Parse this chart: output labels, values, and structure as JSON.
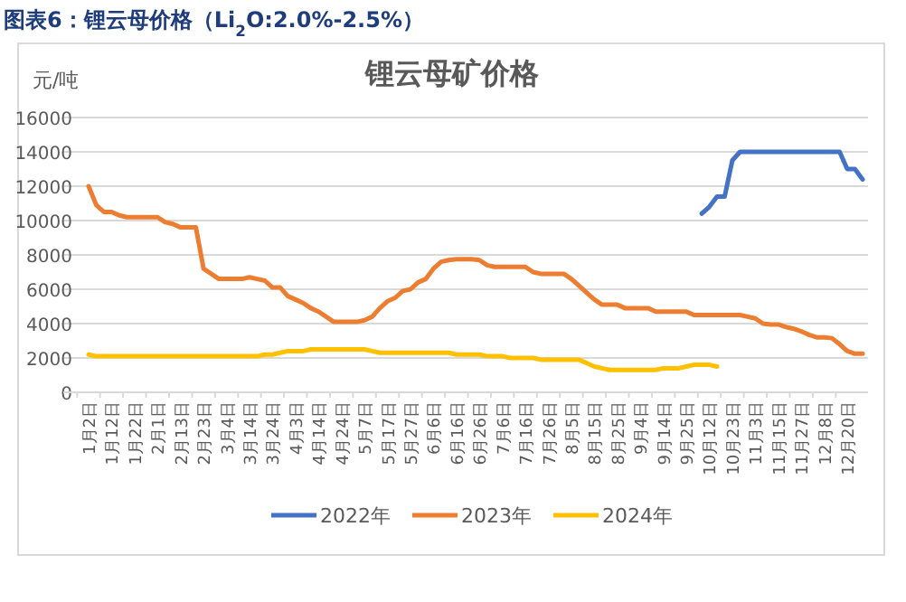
{
  "chart_data": {
    "type": "line",
    "title": "图表6：锂云母价格（Li$_{2}$O:2.0%-2.5%）",
    "subtitle": "锂云母矿价格",
    "ylabel": "元/吨",
    "categories": [
      "1月2日",
      null,
      null,
      "1月12日",
      null,
      null,
      "1月22日",
      null,
      null,
      "2月1日",
      null,
      null,
      "2月13日",
      null,
      null,
      "2月23日",
      null,
      null,
      "3月4日",
      null,
      null,
      "3月14日",
      null,
      null,
      "3月24日",
      null,
      null,
      "4月3日",
      null,
      null,
      "4月14日",
      null,
      null,
      "4月24日",
      null,
      null,
      "5月7日",
      null,
      null,
      "5月17日",
      null,
      null,
      "5月27日",
      null,
      null,
      "6月6日",
      null,
      null,
      "6月16日",
      null,
      null,
      "6月26日",
      null,
      null,
      "7月6日",
      null,
      null,
      "7月16日",
      null,
      null,
      "7月26日",
      null,
      null,
      "8月5日",
      null,
      null,
      "8月15日",
      null,
      null,
      "8月25日",
      null,
      null,
      "9月4日",
      null,
      null,
      "9月14日",
      null,
      null,
      "9月25日",
      null,
      null,
      "10月12日",
      null,
      null,
      "10月23日",
      null,
      null,
      "11月3日",
      null,
      null,
      "11月15日",
      null,
      null,
      "11月27日",
      null,
      null,
      "12月8日",
      null,
      null,
      "12月20日",
      null,
      null
    ],
    "series": [
      {
        "name": "2022年",
        "color": "#4472c4",
        "values": [
          null,
          null,
          null,
          null,
          null,
          null,
          null,
          null,
          null,
          null,
          null,
          null,
          null,
          null,
          null,
          null,
          null,
          null,
          null,
          null,
          null,
          null,
          null,
          null,
          null,
          null,
          null,
          null,
          null,
          null,
          null,
          null,
          null,
          null,
          null,
          null,
          null,
          null,
          null,
          null,
          null,
          null,
          null,
          null,
          null,
          null,
          null,
          null,
          null,
          null,
          null,
          null,
          null,
          null,
          null,
          null,
          null,
          null,
          null,
          null,
          null,
          null,
          null,
          null,
          null,
          null,
          null,
          null,
          null,
          null,
          null,
          null,
          null,
          null,
          null,
          null,
          null,
          null,
          null,
          null,
          10400,
          10800,
          11400,
          11400,
          13500,
          14000,
          14000,
          14000,
          14000,
          14000,
          14000,
          14000,
          14000,
          14000,
          14000,
          14000,
          14000,
          14000,
          14000,
          13000,
          13000,
          12400
        ]
      },
      {
        "name": "2023年",
        "color": "#ed7d31",
        "values": [
          12000,
          10900,
          10500,
          10500,
          10300,
          10200,
          10200,
          10200,
          10200,
          10200,
          9900,
          9800,
          9600,
          9600,
          9600,
          7200,
          6900,
          6600,
          6600,
          6600,
          6600,
          6700,
          6600,
          6500,
          6100,
          6100,
          5600,
          5400,
          5200,
          4900,
          4700,
          4400,
          4100,
          4100,
          4100,
          4100,
          4200,
          4400,
          4900,
          5300,
          5500,
          5900,
          6000,
          6400,
          6600,
          7200,
          7600,
          7700,
          7750,
          7750,
          7750,
          7700,
          7400,
          7300,
          7300,
          7300,
          7300,
          7300,
          7000,
          6900,
          6900,
          6900,
          6900,
          6600,
          6200,
          5800,
          5400,
          5100,
          5100,
          5100,
          4900,
          4900,
          4900,
          4900,
          4700,
          4700,
          4700,
          4700,
          4700,
          4500,
          4500,
          4500,
          4500,
          4500,
          4500,
          4500,
          4400,
          4300,
          4000,
          3950,
          3950,
          3800,
          3700,
          3550,
          3350,
          3200,
          3200,
          3150,
          2800,
          2400,
          2250,
          2250
        ]
      },
      {
        "name": "2024年",
        "color": "#ffc000",
        "values": [
          2200,
          2100,
          2100,
          2100,
          2100,
          2100,
          2100,
          2100,
          2100,
          2100,
          2100,
          2100,
          2100,
          2100,
          2100,
          2100,
          2100,
          2100,
          2100,
          2100,
          2100,
          2100,
          2100,
          2200,
          2200,
          2300,
          2400,
          2400,
          2400,
          2500,
          2500,
          2500,
          2500,
          2500,
          2500,
          2500,
          2500,
          2400,
          2300,
          2300,
          2300,
          2300,
          2300,
          2300,
          2300,
          2300,
          2300,
          2300,
          2200,
          2200,
          2200,
          2200,
          2100,
          2100,
          2100,
          2000,
          2000,
          2000,
          2000,
          1900,
          1900,
          1900,
          1900,
          1900,
          1900,
          1700,
          1500,
          1400,
          1300,
          1300,
          1300,
          1300,
          1300,
          1300,
          1300,
          1400,
          1400,
          1400,
          1500,
          1600,
          1600,
          1600,
          1500,
          null,
          null,
          null,
          null,
          null,
          null,
          null,
          null,
          null,
          null,
          null,
          null,
          null,
          null,
          null,
          null,
          null,
          null,
          null
        ]
      }
    ],
    "ylim": [
      0,
      16000
    ],
    "yticks": [
      0,
      2000,
      4000,
      6000,
      8000,
      10000,
      12000,
      14000,
      16000
    ],
    "grid": "y",
    "legend": "bottom",
    "line_style": "solid",
    "marker": "none"
  }
}
